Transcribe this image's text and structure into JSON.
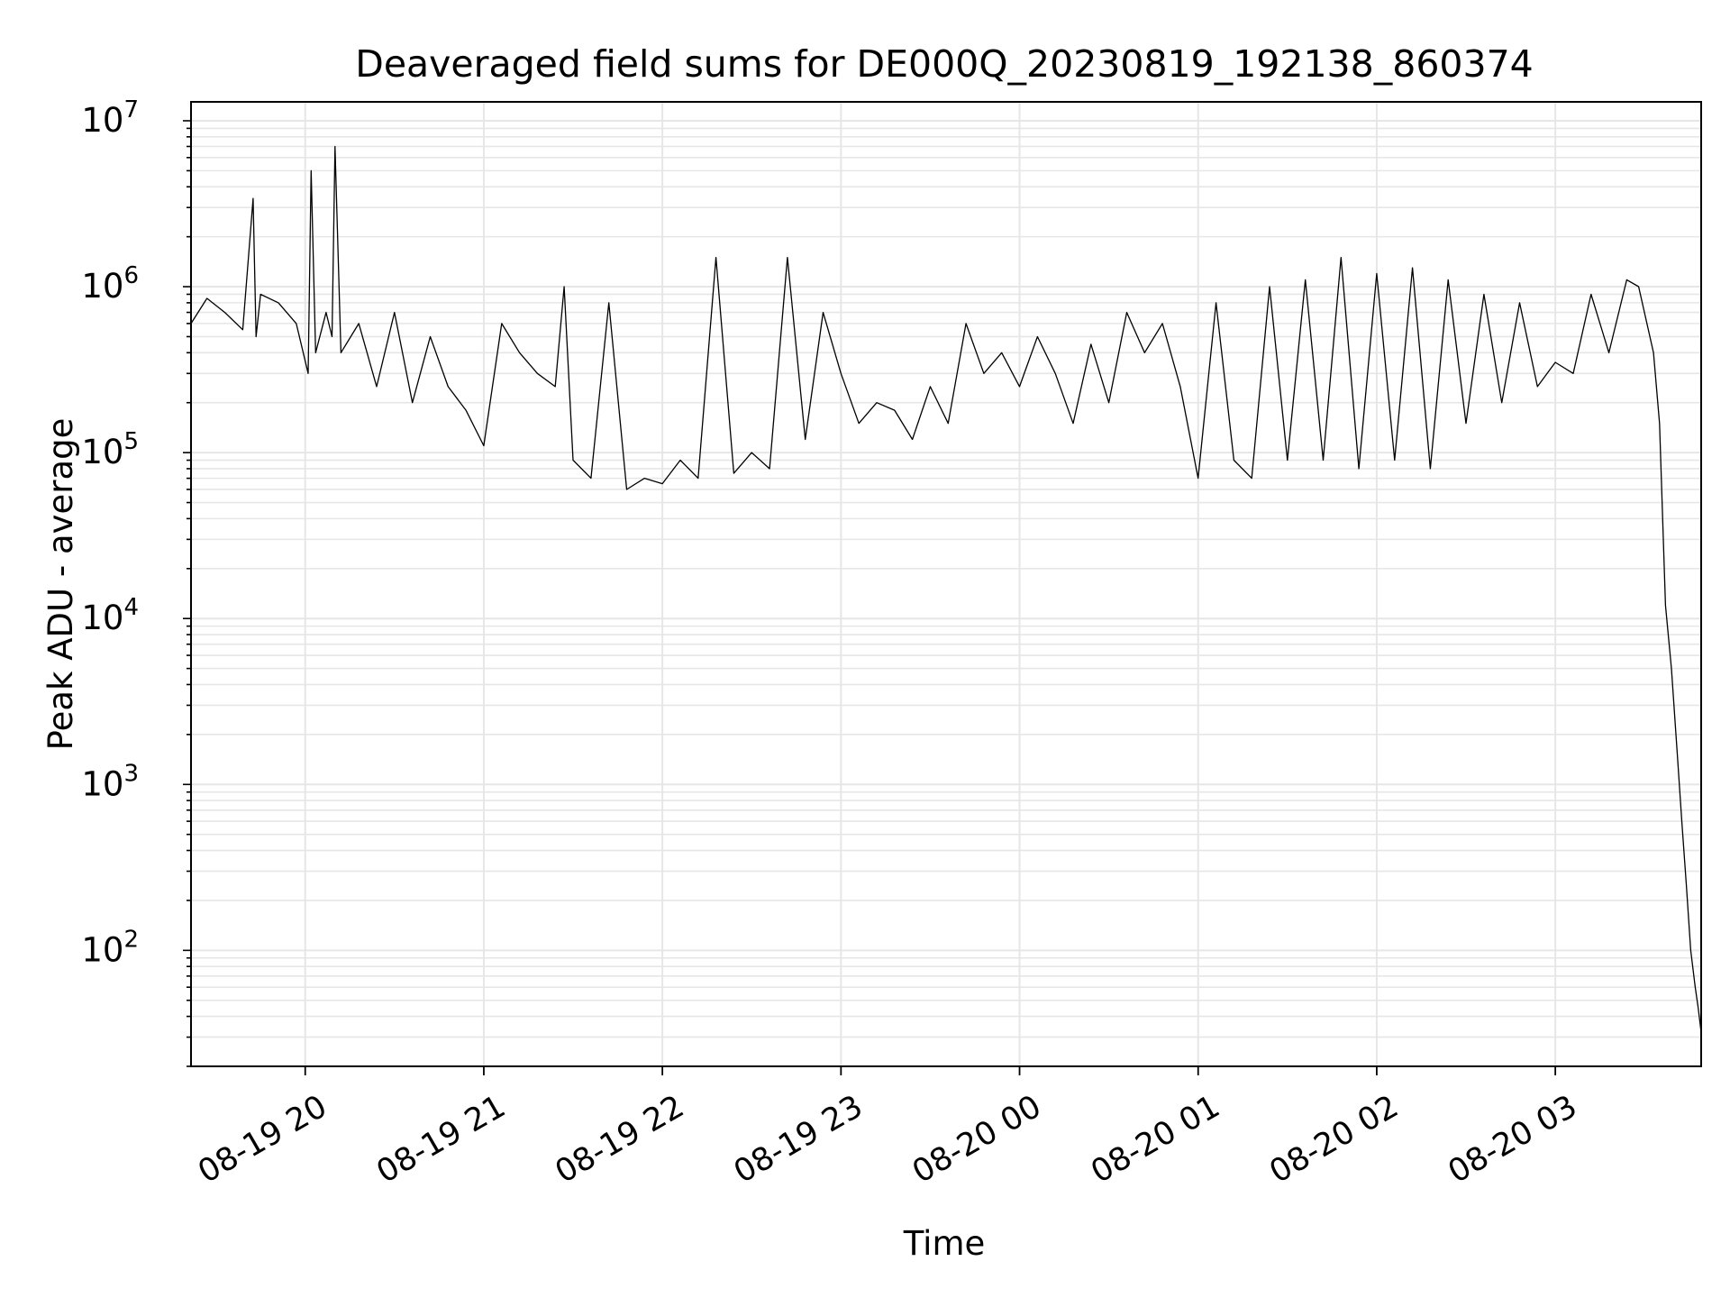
{
  "chart_data": {
    "type": "line",
    "title": "Deaveraged field sums for DE000Q_20230819_192138_860374",
    "xlabel": "Time",
    "ylabel": "Peak ADU - average",
    "yscale": "log",
    "ylim": [
      20,
      13000000
    ],
    "xlim": [
      "2023-08-19 19:21:38",
      "2023-08-20 03:49:00"
    ],
    "grid": true,
    "legend": "none",
    "x_ticks": [
      "08-19 20",
      "08-19 21",
      "08-19 22",
      "08-19 23",
      "08-20 00",
      "08-20 01",
      "08-20 02",
      "08-20 03"
    ],
    "y_ticks": [
      {
        "base": "10",
        "exp": "2",
        "value": 100
      },
      {
        "base": "10",
        "exp": "3",
        "value": 1000
      },
      {
        "base": "10",
        "exp": "4",
        "value": 10000
      },
      {
        "base": "10",
        "exp": "5",
        "value": 100000
      },
      {
        "base": "10",
        "exp": "6",
        "value": 1000000
      },
      {
        "base": "10",
        "exp": "7",
        "value": 10000000
      }
    ],
    "colors": {
      "line": "#000000",
      "grid": "#e6e6e6"
    },
    "series": [
      {
        "x": [
          "2023-08-19 19:21:38",
          "2023-08-19 19:27:00",
          "2023-08-19 19:33:00",
          "2023-08-19 19:39:00",
          "2023-08-19 19:42:30",
          "2023-08-19 19:43:30",
          "2023-08-19 19:45:00",
          "2023-08-19 19:51:00",
          "2023-08-19 19:57:00",
          "2023-08-19 20:01:00",
          "2023-08-19 20:02:00",
          "2023-08-19 20:03:30",
          "2023-08-19 20:07:00",
          "2023-08-19 20:09:00",
          "2023-08-19 20:10:00",
          "2023-08-19 20:12:00",
          "2023-08-19 20:18:00",
          "2023-08-19 20:24:00",
          "2023-08-19 20:30:00",
          "2023-08-19 20:36:00",
          "2023-08-19 20:42:00",
          "2023-08-19 20:48:00",
          "2023-08-19 20:54:00",
          "2023-08-19 21:00:00",
          "2023-08-19 21:06:00",
          "2023-08-19 21:12:00",
          "2023-08-19 21:18:00",
          "2023-08-19 21:24:00",
          "2023-08-19 21:27:00",
          "2023-08-19 21:30:00",
          "2023-08-19 21:36:00",
          "2023-08-19 21:42:00",
          "2023-08-19 21:48:00",
          "2023-08-19 21:54:00",
          "2023-08-19 22:00:00",
          "2023-08-19 22:06:00",
          "2023-08-19 22:12:00",
          "2023-08-19 22:18:00",
          "2023-08-19 22:24:00",
          "2023-08-19 22:30:00",
          "2023-08-19 22:36:00",
          "2023-08-19 22:42:00",
          "2023-08-19 22:48:00",
          "2023-08-19 22:54:00",
          "2023-08-19 23:00:00",
          "2023-08-19 23:06:00",
          "2023-08-19 23:12:00",
          "2023-08-19 23:18:00",
          "2023-08-19 23:24:00",
          "2023-08-19 23:30:00",
          "2023-08-19 23:36:00",
          "2023-08-19 23:42:00",
          "2023-08-19 23:48:00",
          "2023-08-19 23:54:00",
          "2023-08-20 00:00:00",
          "2023-08-20 00:06:00",
          "2023-08-20 00:12:00",
          "2023-08-20 00:18:00",
          "2023-08-20 00:24:00",
          "2023-08-20 00:30:00",
          "2023-08-20 00:36:00",
          "2023-08-20 00:42:00",
          "2023-08-20 00:48:00",
          "2023-08-20 00:54:00",
          "2023-08-20 01:00:00",
          "2023-08-20 01:06:00",
          "2023-08-20 01:12:00",
          "2023-08-20 01:18:00",
          "2023-08-20 01:24:00",
          "2023-08-20 01:30:00",
          "2023-08-20 01:36:00",
          "2023-08-20 01:42:00",
          "2023-08-20 01:48:00",
          "2023-08-20 01:54:00",
          "2023-08-20 02:00:00",
          "2023-08-20 02:06:00",
          "2023-08-20 02:12:00",
          "2023-08-20 02:18:00",
          "2023-08-20 02:24:00",
          "2023-08-20 02:30:00",
          "2023-08-20 02:36:00",
          "2023-08-20 02:42:00",
          "2023-08-20 02:48:00",
          "2023-08-20 02:54:00",
          "2023-08-20 03:00:00",
          "2023-08-20 03:06:00",
          "2023-08-20 03:12:00",
          "2023-08-20 03:18:00",
          "2023-08-20 03:24:00",
          "2023-08-20 03:28:00",
          "2023-08-20 03:33:00",
          "2023-08-20 03:35:00",
          "2023-08-20 03:37:00",
          "2023-08-20 03:39:00",
          "2023-08-20 03:41:00",
          "2023-08-20 03:42:30",
          "2023-08-20 03:44:00",
          "2023-08-20 03:45:30",
          "2023-08-20 03:47:00",
          "2023-08-20 03:48:00",
          "2023-08-20 03:49:00"
        ],
        "y": [
          600000,
          850000,
          700000,
          550000,
          3400000,
          500000,
          900000,
          800000,
          600000,
          300000,
          5000000,
          400000,
          700000,
          500000,
          7000000,
          400000,
          600000,
          250000,
          700000,
          200000,
          500000,
          250000,
          180000,
          110000,
          600000,
          400000,
          300000,
          250000,
          1000000,
          90000,
          70000,
          800000,
          60000,
          70000,
          65000,
          90000,
          70000,
          1500000,
          75000,
          100000,
          80000,
          1500000,
          120000,
          700000,
          300000,
          150000,
          200000,
          180000,
          120000,
          250000,
          150000,
          600000,
          300000,
          400000,
          250000,
          500000,
          300000,
          150000,
          450000,
          200000,
          700000,
          400000,
          600000,
          250000,
          70000,
          800000,
          90000,
          70000,
          1000000,
          90000,
          1100000,
          90000,
          1500000,
          80000,
          1200000,
          90000,
          1300000,
          80000,
          1100000,
          150000,
          900000,
          200000,
          800000,
          250000,
          350000,
          300000,
          900000,
          400000,
          1100000,
          1000000,
          400000,
          150000,
          12000,
          5000,
          1500,
          600,
          250,
          100,
          60,
          45,
          32
        ]
      }
    ]
  }
}
